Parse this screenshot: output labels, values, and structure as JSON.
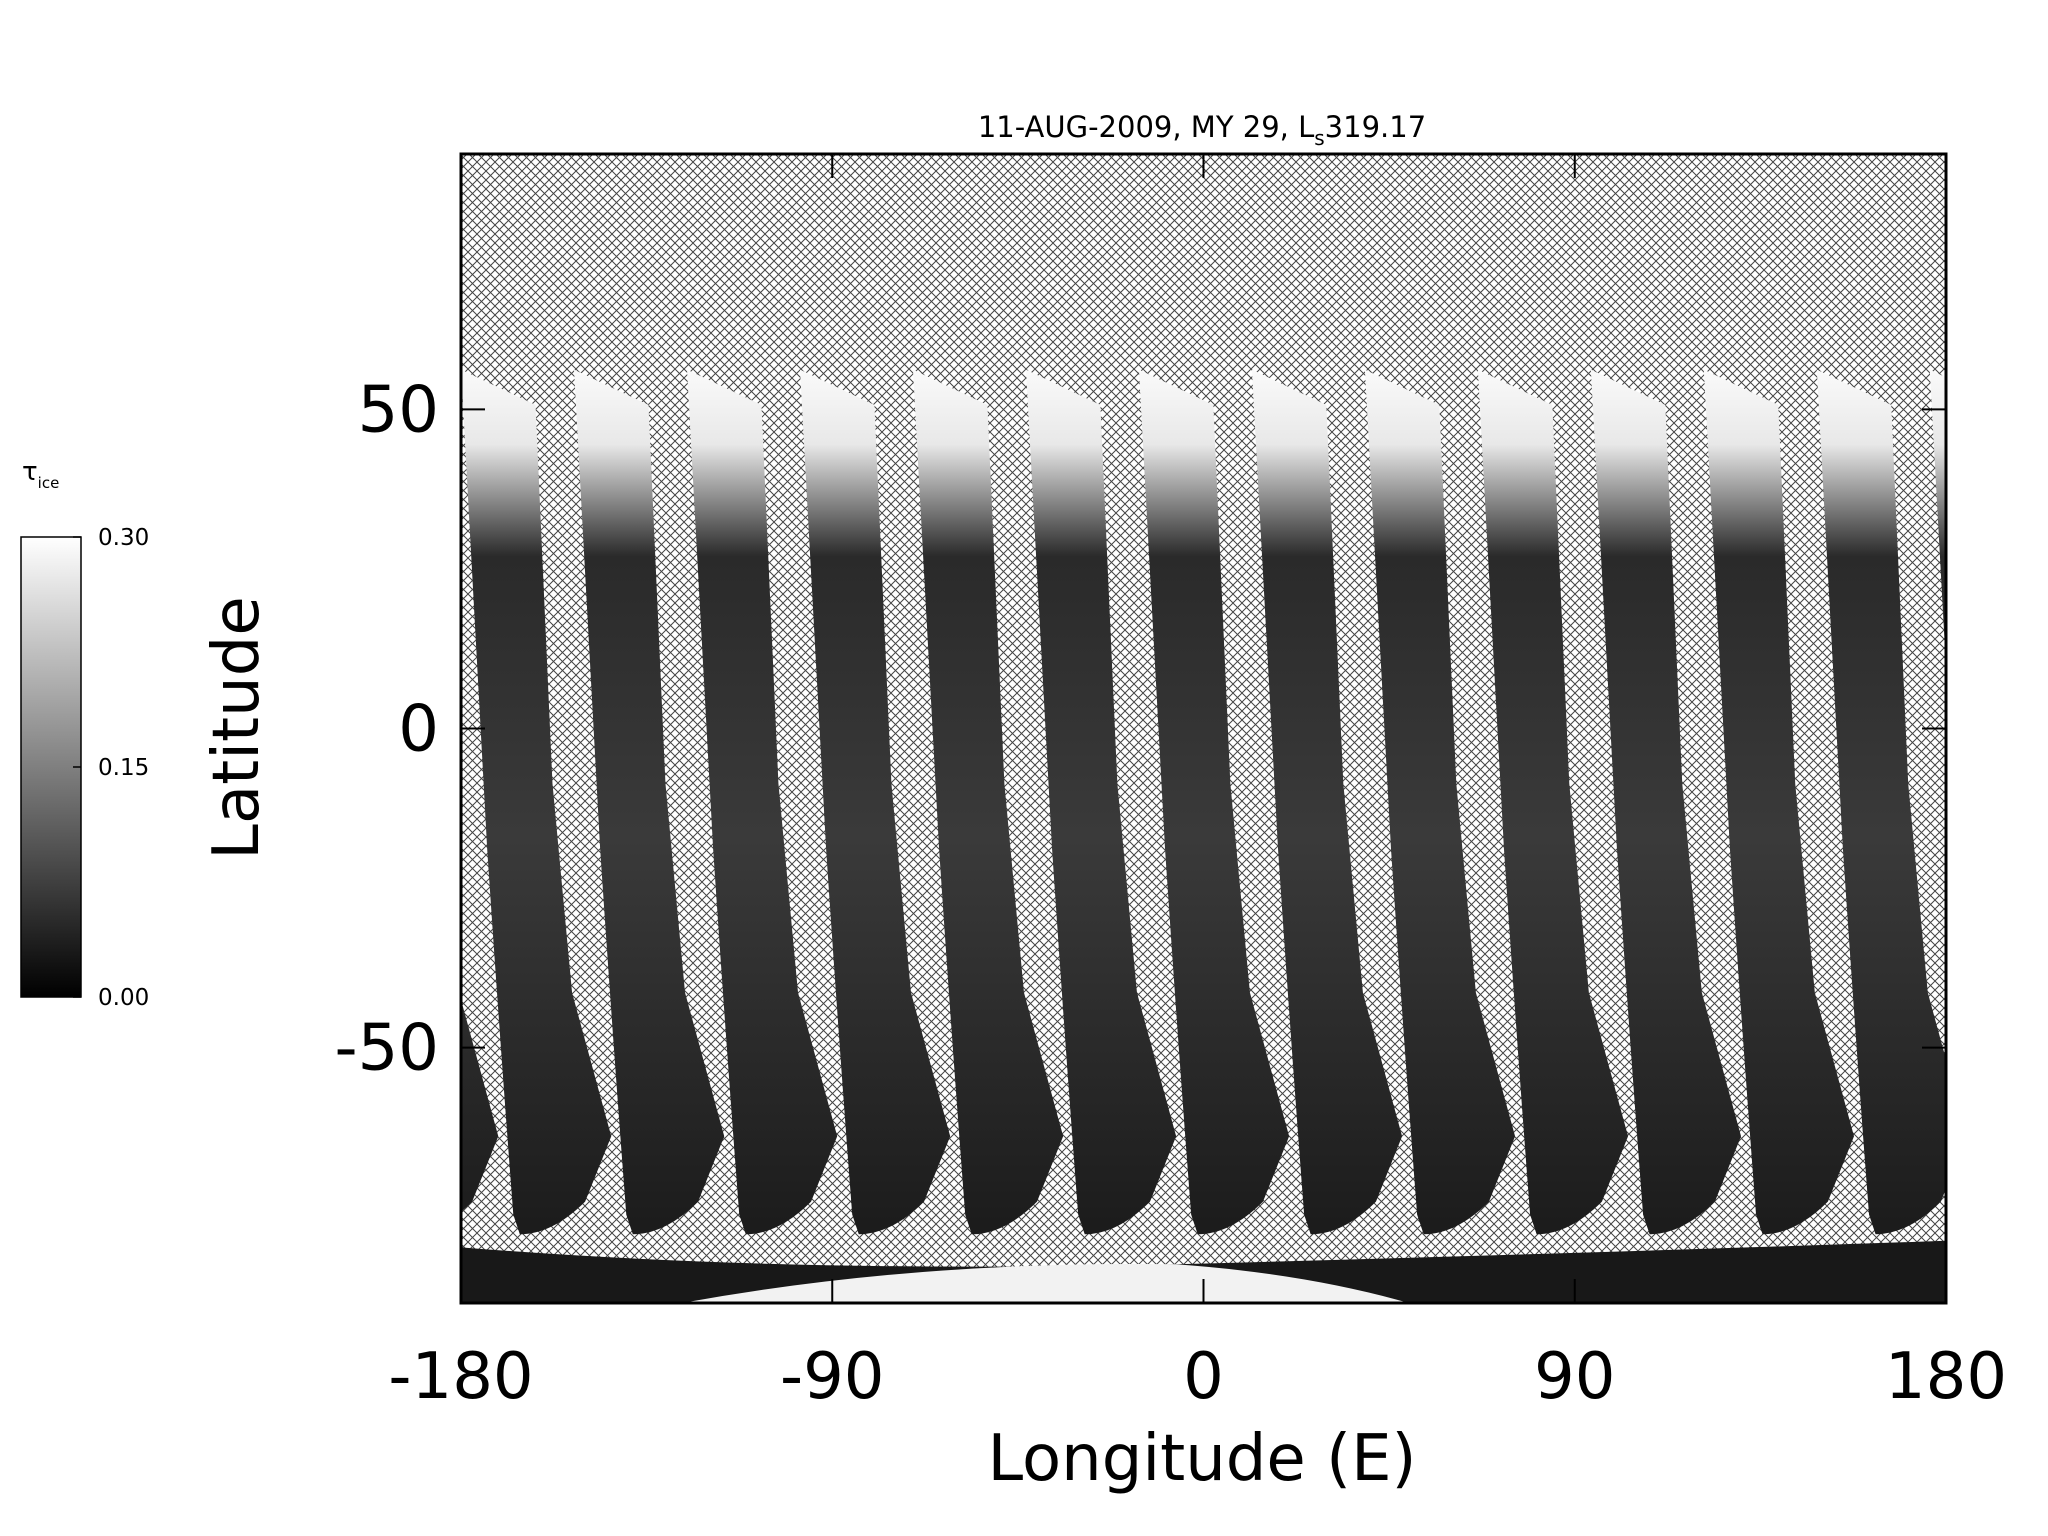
{
  "chart_data": {
    "type": "map",
    "title": "11-AUG-2009, MY 29,  L",
    "title_subscript": "s",
    "title_value": "319.17",
    "xlabel": "Longitude (E)",
    "ylabel": "Latitude",
    "xlim": [
      -180,
      180
    ],
    "xticks": [
      -180,
      -90,
      0,
      90,
      180
    ],
    "ylim": [
      -90,
      90
    ],
    "yticks": [
      -50,
      0,
      50
    ],
    "colorbar": {
      "label": "τ",
      "label_subscript": "ice",
      "lim": [
        0,
        0.3
      ],
      "ticks": [
        {
          "value": 0,
          "label": "0.00"
        },
        0.15,
        {
          "value": 0.3,
          "label": "0.30"
        }
      ]
    }
  }
}
